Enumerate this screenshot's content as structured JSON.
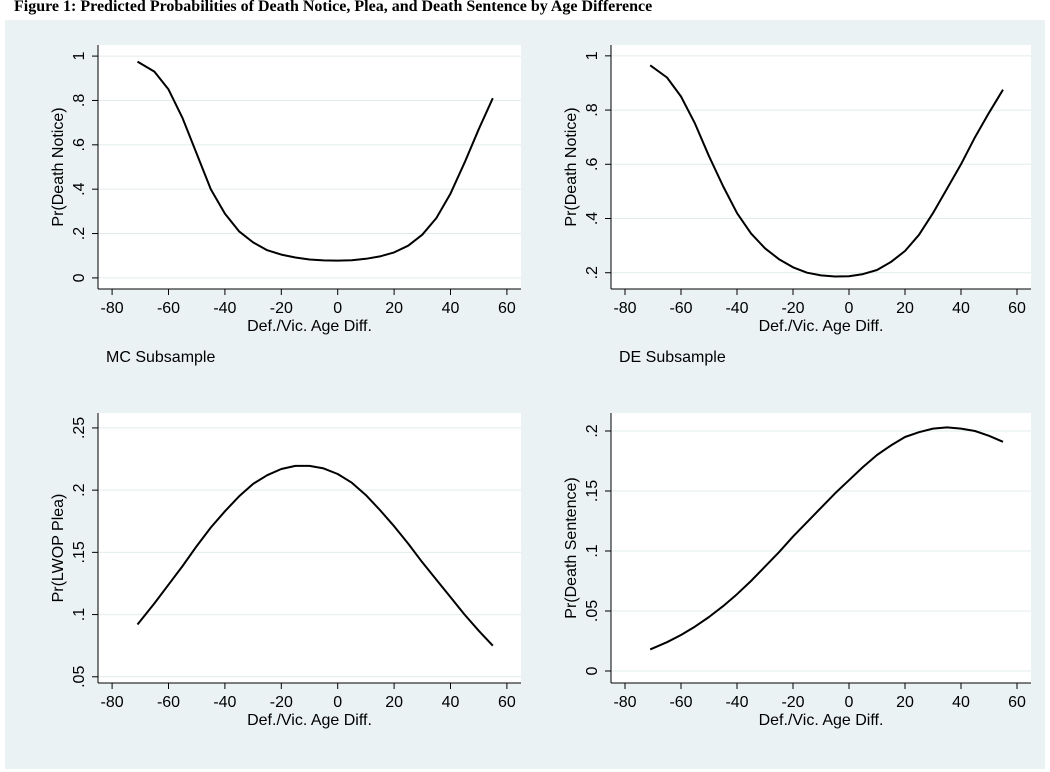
{
  "figure": {
    "title": "Figure 1:  Predicted Probabilities of Death Notice, Plea, and Death Sentence by Age Difference"
  },
  "colors": {
    "background": "#eaf2f3",
    "plot_area": "#ffffff",
    "grid": "#e2ebec",
    "line": "#000000"
  },
  "chart_data": [
    {
      "type": "line",
      "id": "death-notice-mc",
      "xlabel": "Def./Vic. Age Diff.",
      "ylabel": "Pr(Death Notice)",
      "caption": "MC Subsample",
      "xlim": [
        -85,
        65
      ],
      "ylim": [
        -0.05,
        1.05
      ],
      "xticks": [
        -80,
        -60,
        -40,
        -20,
        0,
        20,
        40,
        60
      ],
      "xtick_labels": [
        "-80",
        "-60",
        "-40",
        "-20",
        "0",
        "20",
        "40",
        "60"
      ],
      "yticks": [
        0,
        0.2,
        0.4,
        0.6,
        0.8,
        1
      ],
      "ytick_labels": [
        "0",
        ".2",
        ".4",
        ".6",
        ".8",
        "1"
      ],
      "grid": true,
      "series": [
        {
          "x": [
            -71,
            -65,
            -60,
            -55,
            -50,
            -45,
            -40,
            -35,
            -30,
            -25,
            -20,
            -15,
            -10,
            -5,
            0,
            5,
            10,
            15,
            20,
            25,
            30,
            35,
            40,
            45,
            50,
            55
          ],
          "y": [
            0.975,
            0.93,
            0.85,
            0.72,
            0.56,
            0.4,
            0.29,
            0.21,
            0.16,
            0.125,
            0.105,
            0.092,
            0.083,
            0.079,
            0.078,
            0.08,
            0.086,
            0.097,
            0.115,
            0.145,
            0.195,
            0.27,
            0.38,
            0.52,
            0.67,
            0.81
          ]
        }
      ]
    },
    {
      "type": "line",
      "id": "death-notice-de",
      "xlabel": "Def./Vic. Age Diff.",
      "ylabel": "Pr(Death Notice)",
      "caption": "DE Subsample",
      "xlim": [
        -85,
        65
      ],
      "ylim": [
        0.14,
        1.04
      ],
      "xticks": [
        -80,
        -60,
        -40,
        -20,
        0,
        20,
        40,
        60
      ],
      "xtick_labels": [
        "-80",
        "-60",
        "-40",
        "-20",
        "0",
        "20",
        "40",
        "60"
      ],
      "yticks": [
        0.2,
        0.4,
        0.6,
        0.8,
        1
      ],
      "ytick_labels": [
        ".2",
        ".4",
        ".6",
        ".8",
        "1"
      ],
      "grid": true,
      "series": [
        {
          "x": [
            -71,
            -65,
            -60,
            -55,
            -50,
            -45,
            -40,
            -35,
            -30,
            -25,
            -20,
            -15,
            -10,
            -5,
            0,
            5,
            10,
            15,
            20,
            25,
            30,
            35,
            40,
            45,
            50,
            55
          ],
          "y": [
            0.965,
            0.92,
            0.85,
            0.75,
            0.63,
            0.52,
            0.42,
            0.345,
            0.29,
            0.25,
            0.22,
            0.2,
            0.19,
            0.186,
            0.187,
            0.195,
            0.21,
            0.24,
            0.28,
            0.34,
            0.42,
            0.51,
            0.6,
            0.7,
            0.79,
            0.875
          ]
        }
      ]
    },
    {
      "type": "line",
      "id": "lwop-plea",
      "xlabel": "Def./Vic. Age Diff.",
      "ylabel": "Pr(LWOP Plea)",
      "xlim": [
        -85,
        65
      ],
      "ylim": [
        0.045,
        0.262
      ],
      "xticks": [
        -80,
        -60,
        -40,
        -20,
        0,
        20,
        40,
        60
      ],
      "xtick_labels": [
        "-80",
        "-60",
        "-40",
        "-20",
        "0",
        "20",
        "40",
        "60"
      ],
      "yticks": [
        0.05,
        0.1,
        0.15,
        0.2,
        0.25
      ],
      "ytick_labels": [
        ".05",
        ".1",
        ".15",
        ".2",
        ".25"
      ],
      "grid": true,
      "series": [
        {
          "x": [
            -71,
            -65,
            -60,
            -55,
            -50,
            -45,
            -40,
            -35,
            -30,
            -25,
            -20,
            -15,
            -10,
            -5,
            0,
            5,
            10,
            15,
            20,
            25,
            30,
            35,
            40,
            45,
            50,
            55
          ],
          "y": [
            0.092,
            0.109,
            0.124,
            0.139,
            0.155,
            0.17,
            0.183,
            0.195,
            0.205,
            0.212,
            0.217,
            0.2195,
            0.2195,
            0.2175,
            0.213,
            0.206,
            0.196,
            0.184,
            0.171,
            0.157,
            0.142,
            0.128,
            0.114,
            0.1,
            0.087,
            0.075
          ]
        }
      ]
    },
    {
      "type": "line",
      "id": "death-sentence",
      "xlabel": "Def./Vic. Age Diff.",
      "ylabel": "Pr(Death Sentence)",
      "xlim": [
        -85,
        65
      ],
      "ylim": [
        -0.01,
        0.215
      ],
      "xticks": [
        -80,
        -60,
        -40,
        -20,
        0,
        20,
        40,
        60
      ],
      "xtick_labels": [
        "-80",
        "-60",
        "-40",
        "-20",
        "0",
        "20",
        "40",
        "60"
      ],
      "yticks": [
        0,
        0.05,
        0.1,
        0.15,
        0.2
      ],
      "ytick_labels": [
        "0",
        ".05",
        ".1",
        ".15",
        ".2"
      ],
      "grid": true,
      "series": [
        {
          "x": [
            -71,
            -65,
            -60,
            -55,
            -50,
            -45,
            -40,
            -35,
            -30,
            -25,
            -20,
            -15,
            -10,
            -5,
            0,
            5,
            10,
            15,
            20,
            25,
            30,
            35,
            40,
            45,
            50,
            55
          ],
          "y": [
            0.018,
            0.024,
            0.03,
            0.037,
            0.045,
            0.054,
            0.064,
            0.075,
            0.087,
            0.099,
            0.112,
            0.124,
            0.136,
            0.148,
            0.159,
            0.17,
            0.18,
            0.188,
            0.195,
            0.199,
            0.202,
            0.203,
            0.202,
            0.2,
            0.196,
            0.191
          ]
        }
      ]
    }
  ]
}
